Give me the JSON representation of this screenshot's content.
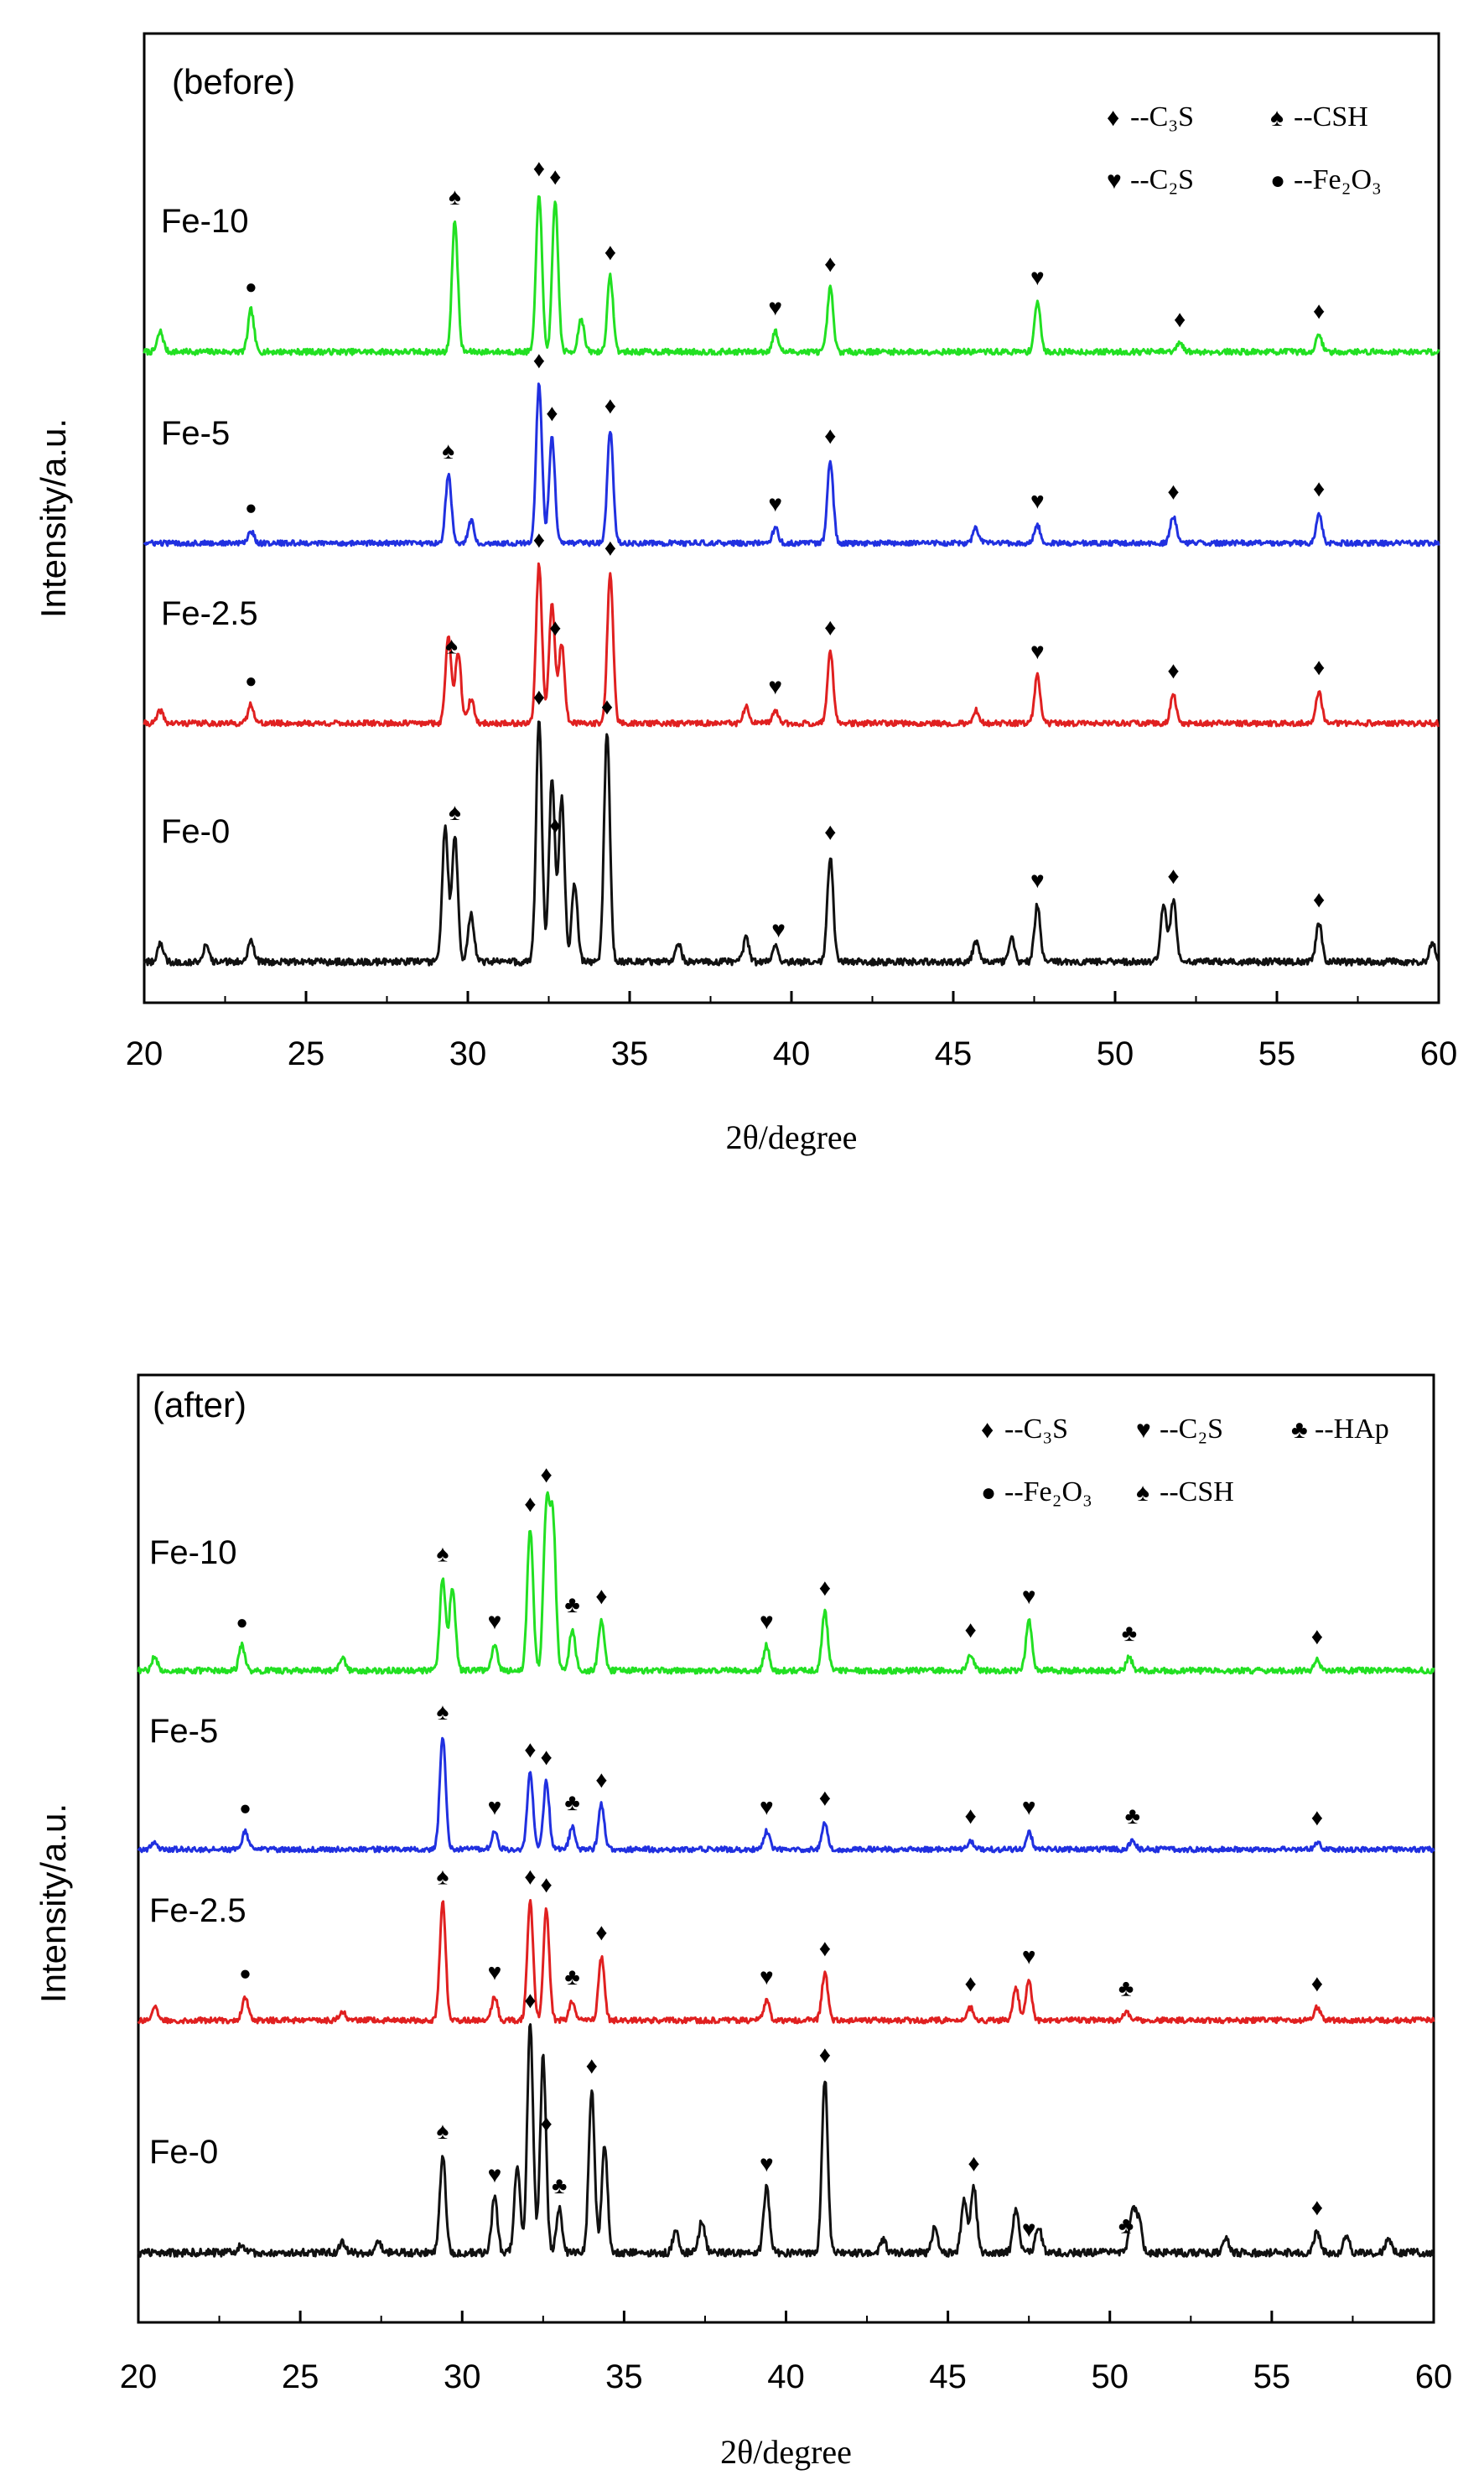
{
  "chart_data": [
    {
      "type": "line",
      "panel_label": "(before)",
      "xlabel": "2θ/degree",
      "ylabel": "Intensity/a.u.",
      "xlim": [
        20,
        60
      ],
      "xticks": [
        "20",
        "25",
        "30",
        "35",
        "40",
        "45",
        "50",
        "55",
        "60"
      ],
      "grid": false,
      "legend": {
        "placement": "top-right",
        "entries": [
          {
            "symbol": "♦",
            "label": "--C₃S"
          },
          {
            "symbol": "♠",
            "label": "--CSH"
          },
          {
            "symbol": "♥",
            "label": "--C₂S"
          },
          {
            "symbol": "●",
            "label": "--Fe₂O₃"
          }
        ]
      },
      "series": [
        {
          "name": "Fe-10",
          "color": "#22e022",
          "offset": 3,
          "peaks": [
            [
              20.5,
              0.12
            ],
            [
              23.3,
              0.25
            ],
            [
              29.6,
              0.78
            ],
            [
              32.2,
              0.95
            ],
            [
              32.7,
              0.9
            ],
            [
              33.5,
              0.2
            ],
            [
              34.4,
              0.45
            ],
            [
              39.5,
              0.12
            ],
            [
              41.2,
              0.38
            ],
            [
              47.6,
              0.3
            ],
            [
              52.0,
              0.05
            ],
            [
              56.3,
              0.1
            ]
          ],
          "markers": [
            {
              "x": 23.3,
              "sym": "●"
            },
            {
              "x": 29.6,
              "sym": "♠"
            },
            {
              "x": 32.2,
              "sym": "♦"
            },
            {
              "x": 32.7,
              "sym": "♦"
            },
            {
              "x": 34.4,
              "sym": "♦"
            },
            {
              "x": 39.5,
              "sym": "♥"
            },
            {
              "x": 41.2,
              "sym": "♦"
            },
            {
              "x": 47.6,
              "sym": "♥"
            },
            {
              "x": 52.0,
              "sym": "♦"
            },
            {
              "x": 56.3,
              "sym": "♦"
            }
          ]
        },
        {
          "name": "Fe-5",
          "color": "#2030e0",
          "offset": 2,
          "peaks": [
            [
              23.3,
              0.08
            ],
            [
              29.4,
              0.45
            ],
            [
              30.1,
              0.15
            ],
            [
              32.2,
              1.05
            ],
            [
              32.6,
              0.7
            ],
            [
              34.4,
              0.75
            ],
            [
              39.5,
              0.1
            ],
            [
              41.2,
              0.55
            ],
            [
              45.7,
              0.1
            ],
            [
              47.6,
              0.12
            ],
            [
              51.8,
              0.18
            ],
            [
              56.3,
              0.2
            ]
          ],
          "markers": [
            {
              "x": 23.3,
              "sym": "●"
            },
            {
              "x": 29.4,
              "sym": "♠"
            },
            {
              "x": 32.2,
              "sym": "♦"
            },
            {
              "x": 32.6,
              "sym": "♦"
            },
            {
              "x": 34.4,
              "sym": "♦"
            },
            {
              "x": 39.5,
              "sym": "♥"
            },
            {
              "x": 41.2,
              "sym": "♦"
            },
            {
              "x": 47.6,
              "sym": "♥"
            },
            {
              "x": 51.8,
              "sym": "♦"
            },
            {
              "x": 56.3,
              "sym": "♦"
            }
          ]
        },
        {
          "name": "Fe-2.5",
          "color": "#e02020",
          "offset": 1,
          "peaks": [
            [
              20.5,
              0.08
            ],
            [
              23.3,
              0.12
            ],
            [
              29.4,
              0.55
            ],
            [
              29.7,
              0.45
            ],
            [
              30.1,
              0.15
            ],
            [
              32.2,
              1.0
            ],
            [
              32.6,
              0.75
            ],
            [
              32.9,
              0.5
            ],
            [
              34.4,
              0.95
            ],
            [
              38.6,
              0.1
            ],
            [
              39.5,
              0.08
            ],
            [
              41.2,
              0.45
            ],
            [
              45.7,
              0.08
            ],
            [
              47.6,
              0.3
            ],
            [
              51.8,
              0.18
            ],
            [
              56.3,
              0.2
            ]
          ],
          "markers": [
            {
              "x": 23.3,
              "sym": "●"
            },
            {
              "x": 29.5,
              "sym": "♠"
            },
            {
              "x": 32.2,
              "sym": "♦"
            },
            {
              "x": 32.7,
              "sym": "♦"
            },
            {
              "x": 34.4,
              "sym": "♦"
            },
            {
              "x": 39.5,
              "sym": "♥"
            },
            {
              "x": 41.2,
              "sym": "♦"
            },
            {
              "x": 47.6,
              "sym": "♥"
            },
            {
              "x": 51.8,
              "sym": "♦"
            },
            {
              "x": 56.3,
              "sym": "♦"
            }
          ]
        },
        {
          "name": "Fe-0",
          "color": "#111111",
          "offset": 0,
          "peaks": [
            [
              20.5,
              0.1
            ],
            [
              21.9,
              0.08
            ],
            [
              23.3,
              0.12
            ],
            [
              29.3,
              0.7
            ],
            [
              29.6,
              0.65
            ],
            [
              30.1,
              0.25
            ],
            [
              32.2,
              1.25
            ],
            [
              32.6,
              0.95
            ],
            [
              32.9,
              0.85
            ],
            [
              33.3,
              0.4
            ],
            [
              34.3,
              1.2
            ],
            [
              36.5,
              0.1
            ],
            [
              38.6,
              0.12
            ],
            [
              39.5,
              0.08
            ],
            [
              41.2,
              0.55
            ],
            [
              45.7,
              0.1
            ],
            [
              46.8,
              0.12
            ],
            [
              47.6,
              0.3
            ],
            [
              51.5,
              0.3
            ],
            [
              51.8,
              0.32
            ],
            [
              56.3,
              0.2
            ],
            [
              59.8,
              0.1
            ]
          ],
          "markers": [
            {
              "x": 32.2,
              "sym": "♦"
            },
            {
              "x": 32.7,
              "sym": "♦"
            },
            {
              "x": 34.3,
              "sym": "♦"
            },
            {
              "x": 29.6,
              "sym": "♠"
            },
            {
              "x": 39.6,
              "sym": "♥"
            },
            {
              "x": 41.2,
              "sym": "♦"
            },
            {
              "x": 47.6,
              "sym": "♥"
            },
            {
              "x": 51.8,
              "sym": "♦"
            },
            {
              "x": 56.3,
              "sym": "♦"
            }
          ]
        }
      ]
    },
    {
      "type": "line",
      "panel_label": "(after)",
      "xlabel": "2θ/degree",
      "ylabel": "Intensity/a.u.",
      "xlim": [
        20,
        60
      ],
      "xticks": [
        "20",
        "25",
        "30",
        "35",
        "40",
        "45",
        "50",
        "55",
        "60"
      ],
      "grid": false,
      "legend": {
        "placement": "top-right",
        "entries": [
          {
            "symbol": "♦",
            "label": "--C₃S"
          },
          {
            "symbol": "♥",
            "label": "--C₂S"
          },
          {
            "symbol": "♣",
            "label": "--HAp"
          },
          {
            "symbol": "●",
            "label": "--Fe₂O₃"
          },
          {
            "symbol": "♠",
            "label": "--CSH"
          }
        ]
      },
      "series": [
        {
          "name": "Fe-10",
          "color": "#22e022",
          "offset": 3,
          "peaks": [
            [
              20.5,
              0.08
            ],
            [
              23.2,
              0.15
            ],
            [
              26.3,
              0.08
            ],
            [
              29.4,
              0.55
            ],
            [
              29.7,
              0.5
            ],
            [
              31.0,
              0.15
            ],
            [
              32.1,
              0.85
            ],
            [
              32.6,
              0.95
            ],
            [
              32.8,
              0.9
            ],
            [
              33.4,
              0.25
            ],
            [
              34.3,
              0.3
            ],
            [
              39.4,
              0.15
            ],
            [
              41.2,
              0.35
            ],
            [
              45.7,
              0.1
            ],
            [
              47.5,
              0.3
            ],
            [
              50.6,
              0.08
            ],
            [
              56.4,
              0.06
            ]
          ],
          "markers": [
            {
              "x": 23.2,
              "sym": "●"
            },
            {
              "x": 29.4,
              "sym": "♠"
            },
            {
              "x": 31.0,
              "sym": "♥"
            },
            {
              "x": 32.1,
              "sym": "♦"
            },
            {
              "x": 32.6,
              "sym": "♦"
            },
            {
              "x": 33.4,
              "sym": "♣"
            },
            {
              "x": 34.3,
              "sym": "♦"
            },
            {
              "x": 39.4,
              "sym": "♥"
            },
            {
              "x": 41.2,
              "sym": "♦"
            },
            {
              "x": 45.7,
              "sym": "♦"
            },
            {
              "x": 47.5,
              "sym": "♥"
            },
            {
              "x": 50.6,
              "sym": "♣"
            },
            {
              "x": 56.4,
              "sym": "♦"
            }
          ]
        },
        {
          "name": "Fe-5",
          "color": "#2030e0",
          "offset": 2,
          "peaks": [
            [
              20.5,
              0.05
            ],
            [
              23.3,
              0.12
            ],
            [
              29.4,
              0.75
            ],
            [
              31.0,
              0.12
            ],
            [
              32.1,
              0.5
            ],
            [
              32.6,
              0.45
            ],
            [
              33.4,
              0.15
            ],
            [
              34.3,
              0.3
            ],
            [
              39.4,
              0.12
            ],
            [
              41.2,
              0.18
            ],
            [
              45.7,
              0.06
            ],
            [
              47.5,
              0.12
            ],
            [
              50.7,
              0.06
            ],
            [
              56.4,
              0.05
            ]
          ],
          "markers": [
            {
              "x": 23.3,
              "sym": "●"
            },
            {
              "x": 29.4,
              "sym": "♠"
            },
            {
              "x": 31.0,
              "sym": "♥"
            },
            {
              "x": 32.1,
              "sym": "♦"
            },
            {
              "x": 32.6,
              "sym": "♦"
            },
            {
              "x": 33.4,
              "sym": "♣"
            },
            {
              "x": 34.3,
              "sym": "♦"
            },
            {
              "x": 39.4,
              "sym": "♥"
            },
            {
              "x": 41.2,
              "sym": "♦"
            },
            {
              "x": 45.7,
              "sym": "♦"
            },
            {
              "x": 47.5,
              "sym": "♥"
            },
            {
              "x": 50.7,
              "sym": "♣"
            },
            {
              "x": 56.4,
              "sym": "♦"
            }
          ]
        },
        {
          "name": "Fe-2.5",
          "color": "#e02020",
          "offset": 1,
          "peaks": [
            [
              20.5,
              0.08
            ],
            [
              23.3,
              0.15
            ],
            [
              26.3,
              0.06
            ],
            [
              29.4,
              0.75
            ],
            [
              31.0,
              0.15
            ],
            [
              32.1,
              0.75
            ],
            [
              32.6,
              0.7
            ],
            [
              33.4,
              0.12
            ],
            [
              34.3,
              0.4
            ],
            [
              39.4,
              0.12
            ],
            [
              41.2,
              0.3
            ],
            [
              45.7,
              0.08
            ],
            [
              47.1,
              0.2
            ],
            [
              47.5,
              0.25
            ],
            [
              50.5,
              0.05
            ],
            [
              56.4,
              0.08
            ]
          ],
          "markers": [
            {
              "x": 23.3,
              "sym": "●"
            },
            {
              "x": 29.4,
              "sym": "♠"
            },
            {
              "x": 31.0,
              "sym": "♥"
            },
            {
              "x": 32.1,
              "sym": "♦"
            },
            {
              "x": 32.6,
              "sym": "♦"
            },
            {
              "x": 33.4,
              "sym": "♣"
            },
            {
              "x": 34.3,
              "sym": "♦"
            },
            {
              "x": 39.4,
              "sym": "♥"
            },
            {
              "x": 41.2,
              "sym": "♦"
            },
            {
              "x": 45.7,
              "sym": "♦"
            },
            {
              "x": 47.5,
              "sym": "♥"
            },
            {
              "x": 50.5,
              "sym": "♣"
            },
            {
              "x": 56.4,
              "sym": "♦"
            }
          ]
        },
        {
          "name": "Fe-0",
          "color": "#111111",
          "offset": 0,
          "peaks": [
            [
              23.2,
              0.04
            ],
            [
              26.3,
              0.05
            ],
            [
              27.4,
              0.06
            ],
            [
              29.4,
              0.45
            ],
            [
              31.0,
              0.25
            ],
            [
              31.7,
              0.4
            ],
            [
              32.1,
              1.05
            ],
            [
              32.5,
              0.9
            ],
            [
              33.0,
              0.2
            ],
            [
              34.0,
              0.75
            ],
            [
              34.4,
              0.5
            ],
            [
              36.6,
              0.1
            ],
            [
              37.4,
              0.15
            ],
            [
              39.4,
              0.3
            ],
            [
              41.2,
              0.8
            ],
            [
              43.0,
              0.06
            ],
            [
              44.6,
              0.12
            ],
            [
              45.5,
              0.25
            ],
            [
              45.8,
              0.3
            ],
            [
              47.1,
              0.2
            ],
            [
              47.8,
              0.12
            ],
            [
              50.7,
              0.2
            ],
            [
              50.9,
              0.15
            ],
            [
              53.6,
              0.06
            ],
            [
              56.4,
              0.1
            ],
            [
              57.3,
              0.08
            ],
            [
              58.6,
              0.06
            ]
          ],
          "markers": [
            {
              "x": 29.4,
              "sym": "♠"
            },
            {
              "x": 31.0,
              "sym": "♥"
            },
            {
              "x": 32.1,
              "sym": "♦"
            },
            {
              "x": 32.6,
              "sym": "♦"
            },
            {
              "x": 33.0,
              "sym": "♣"
            },
            {
              "x": 34.0,
              "sym": "♦"
            },
            {
              "x": 39.4,
              "sym": "♥"
            },
            {
              "x": 41.2,
              "sym": "♦"
            },
            {
              "x": 45.8,
              "sym": "♦"
            },
            {
              "x": 47.5,
              "sym": "♥"
            },
            {
              "x": 50.5,
              "sym": "♣"
            },
            {
              "x": 56.4,
              "sym": "♦"
            }
          ]
        }
      ]
    }
  ]
}
